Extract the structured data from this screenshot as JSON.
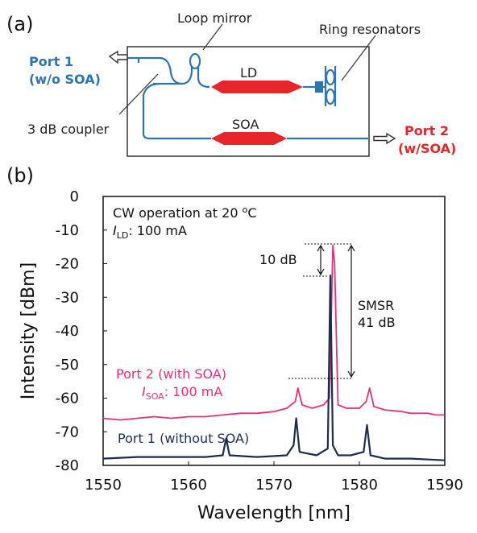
{
  "panel_a": {
    "panel_label": "(a)",
    "loop_mirror": "Loop mirror",
    "ring_resonators": "Ring resonators",
    "port1_line1": "Port 1",
    "port1_line2": "(w/o SOA)",
    "coupler": "3 dB coupler",
    "ld": "LD",
    "soa": "SOA",
    "port2_line1": "Port 2",
    "port2_line2": "(w/SOA)",
    "colors": {
      "waveguide": "#2e75b6",
      "gain_chip": "#e8262a",
      "port1": "#2e75b6",
      "port2": "#e8262a"
    }
  },
  "panel_b": {
    "panel_label": "(b)",
    "annotation_cw": "CW operation at 20 ",
    "annotation_cw_sup": "o",
    "annotation_cw_unit": "C",
    "annotation_ild_sym": "I",
    "annotation_ild_sub": "LD",
    "annotation_ild_val": ": 100 mA",
    "label_10db": "10 dB",
    "smsr_line1": "SMSR",
    "smsr_line2": "41 dB",
    "port2_series": "Port 2 (with SOA)",
    "isoa_sym": "I",
    "isoa_sub": "SOA",
    "isoa_val": ": 100 mA",
    "port1_series": "Port 1 (without SOA)"
  },
  "chart_data": {
    "type": "line",
    "xlabel": "Wavelength [nm]",
    "ylabel": "Intensity [dBm]",
    "xlim": [
      1550,
      1590
    ],
    "ylim": [
      -80,
      0
    ],
    "xticks": [
      1550,
      1560,
      1570,
      1580,
      1590
    ],
    "yticks": [
      0,
      -10,
      -20,
      -30,
      -40,
      -50,
      -60,
      -70,
      -80
    ],
    "grid": false,
    "series": [
      {
        "name": "Port 2 (with SOA)",
        "color": "#e8307a",
        "x": [
          1550,
          1552,
          1554,
          1556,
          1558,
          1560,
          1562,
          1564,
          1566,
          1568,
          1570,
          1571.5,
          1572.5,
          1572.8,
          1573.3,
          1574.5,
          1575.8,
          1576.5,
          1576.9,
          1577.1,
          1577.5,
          1578.5,
          1580,
          1580.8,
          1581.2,
          1581.7,
          1583,
          1585,
          1586,
          1587,
          1588,
          1589,
          1590
        ],
        "values": [
          -66,
          -66.5,
          -66,
          -65.5,
          -66,
          -65.5,
          -65.5,
          -65,
          -64.5,
          -64.5,
          -64,
          -63,
          -61,
          -57,
          -62,
          -63,
          -62,
          -60,
          -14.5,
          -20,
          -62,
          -63,
          -63,
          -61,
          -57,
          -62.5,
          -63.5,
          -64,
          -64.5,
          -64.5,
          -64.5,
          -65,
          -65
        ]
      },
      {
        "name": "Port 1 (without SOA)",
        "color": "#1f2d4d",
        "x": [
          1550,
          1554,
          1558,
          1562,
          1564,
          1564.4,
          1564.8,
          1568,
          1571.5,
          1572.3,
          1572.6,
          1573,
          1575,
          1576.3,
          1576.6,
          1576.9,
          1577.5,
          1579,
          1580.5,
          1580.9,
          1581.3,
          1583,
          1586,
          1590
        ],
        "values": [
          -78,
          -77.5,
          -77.5,
          -77.5,
          -77,
          -72,
          -77,
          -77.5,
          -77,
          -74,
          -66,
          -76,
          -77,
          -75,
          -23.5,
          -74,
          -77,
          -77,
          -76,
          -68,
          -77,
          -78,
          -78,
          -78.5
        ]
      }
    ]
  }
}
